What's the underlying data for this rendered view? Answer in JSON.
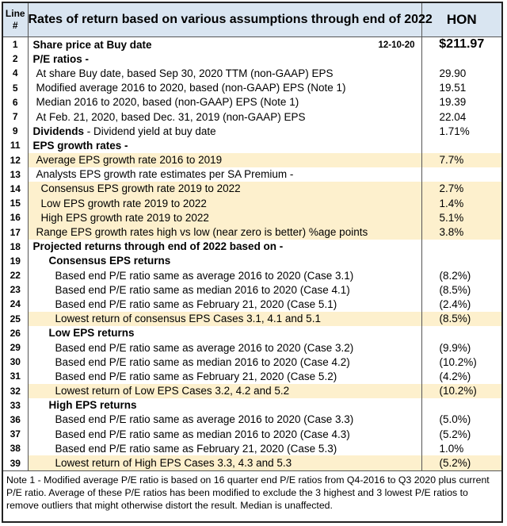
{
  "header": {
    "line_label": "Line #",
    "title": "Rates of return based on various assumptions through end of 2022",
    "ticker": "HON"
  },
  "rows": [
    {
      "line": "1",
      "desc": "Share price at Buy date",
      "date": "12-10-20",
      "value": "$211.97"
    },
    {
      "line": "2",
      "desc": "P/E ratios -",
      "value": ""
    },
    {
      "line": "4",
      "desc": "At share Buy date, based Sep 30, 2020 TTM (non-GAAP) EPS",
      "value": "29.90"
    },
    {
      "line": "5",
      "desc": "Modified average 2016 to 2020, based (non-GAAP) EPS  (Note 1)",
      "value": "19.51"
    },
    {
      "line": "6",
      "desc": "Median 2016 to 2020, based (non-GAAP) EPS  (Note 1)",
      "value": "19.39"
    },
    {
      "line": "7",
      "desc": "At Feb. 21, 2020, based Dec. 31, 2019 (non-GAAP) EPS",
      "value": "22.04"
    },
    {
      "line": "9",
      "desc_bold": "Dividends",
      "desc": " - Dividend yield at buy date",
      "value": "1.71%"
    },
    {
      "line": "11",
      "desc": "EPS growth rates -",
      "value": ""
    },
    {
      "line": "12",
      "desc": "Average EPS growth rate 2016 to 2019",
      "value": "7.7%"
    },
    {
      "line": "13",
      "desc": "Analysts EPS growth rate estimates per SA Premium -",
      "value": ""
    },
    {
      "line": "14",
      "desc": "Consensus EPS growth rate 2019 to 2022",
      "value": "2.7%"
    },
    {
      "line": "15",
      "desc": "Low EPS growth rate 2019 to 2022",
      "value": "1.4%"
    },
    {
      "line": "16",
      "desc": "High EPS growth rate 2019 to 2022",
      "value": "5.1%"
    },
    {
      "line": "17",
      "desc": "Range EPS growth rates high vs low (near zero is better) %age points",
      "value": "3.8%"
    },
    {
      "line": "18",
      "desc": "Projected returns through end of 2022 based on -",
      "value": ""
    },
    {
      "line": "19",
      "desc": "Consensus EPS returns",
      "value": ""
    },
    {
      "line": "22",
      "desc": "Based end P/E ratio same as average 2016 to 2020 (Case 3.1)",
      "value": "(8.2%)"
    },
    {
      "line": "23",
      "desc": "Based end P/E ratio same as median 2016 to 2020 (Case 4.1)",
      "value": "(8.5%)"
    },
    {
      "line": "24",
      "desc": "Based end P/E ratio same as February 21, 2020  (Case 5.1)",
      "value": "(2.4%)"
    },
    {
      "line": "25",
      "desc": "Lowest return of consensus EPS Cases 3.1, 4.1 and 5.1",
      "value": "(8.5%)"
    },
    {
      "line": "26",
      "desc": "Low EPS returns",
      "value": ""
    },
    {
      "line": "29",
      "desc": "Based end P/E ratio same as average 2016 to 2020 (Case 3.2)",
      "value": "(9.9%)"
    },
    {
      "line": "30",
      "desc": "Based end P/E ratio same as median 2016 to 2020 (Case 4.2)",
      "value": "(10.2%)"
    },
    {
      "line": "31",
      "desc": "Based end P/E ratio same as February 21, 2020  (Case 5.2)",
      "value": "(4.2%)"
    },
    {
      "line": "32",
      "desc": "Lowest return  of Low EPS Cases 3.2, 4.2 and 5.2",
      "value": "(10.2%)"
    },
    {
      "line": "33",
      "desc": "High  EPS returns",
      "value": ""
    },
    {
      "line": "36",
      "desc": "Based end P/E ratio same as average 2016 to 2020 (Case 3.3)",
      "value": "(5.0%)"
    },
    {
      "line": "37",
      "desc": "Based end P/E ratio same as median 2016 to 2020 (Case 4.3)",
      "value": "(5.2%)"
    },
    {
      "line": "38",
      "desc": "Based end P/E ratio same as February 21, 2020  (Case 5.3)",
      "value": "1.0%"
    },
    {
      "line": "39",
      "desc": "Lowest return  of High EPS Cases 3.3, 4.3 and 5.3",
      "value": "(5.2%)"
    }
  ],
  "note": "Note 1 - Modified average P/E ratio is based on 16 quarter end  P/E ratios from Q4-2016 to Q3 2020 plus current P/E ratio. Average of these P/E ratios has been modified to exclude the 3 highest and 3 lowest P/E ratios to remove outliers that might otherwise distort the result. Median is unaffected.",
  "colors": {
    "header_bg": "#d9e5f1",
    "highlight_bg": "#fdf0cd",
    "border": "#222222"
  }
}
